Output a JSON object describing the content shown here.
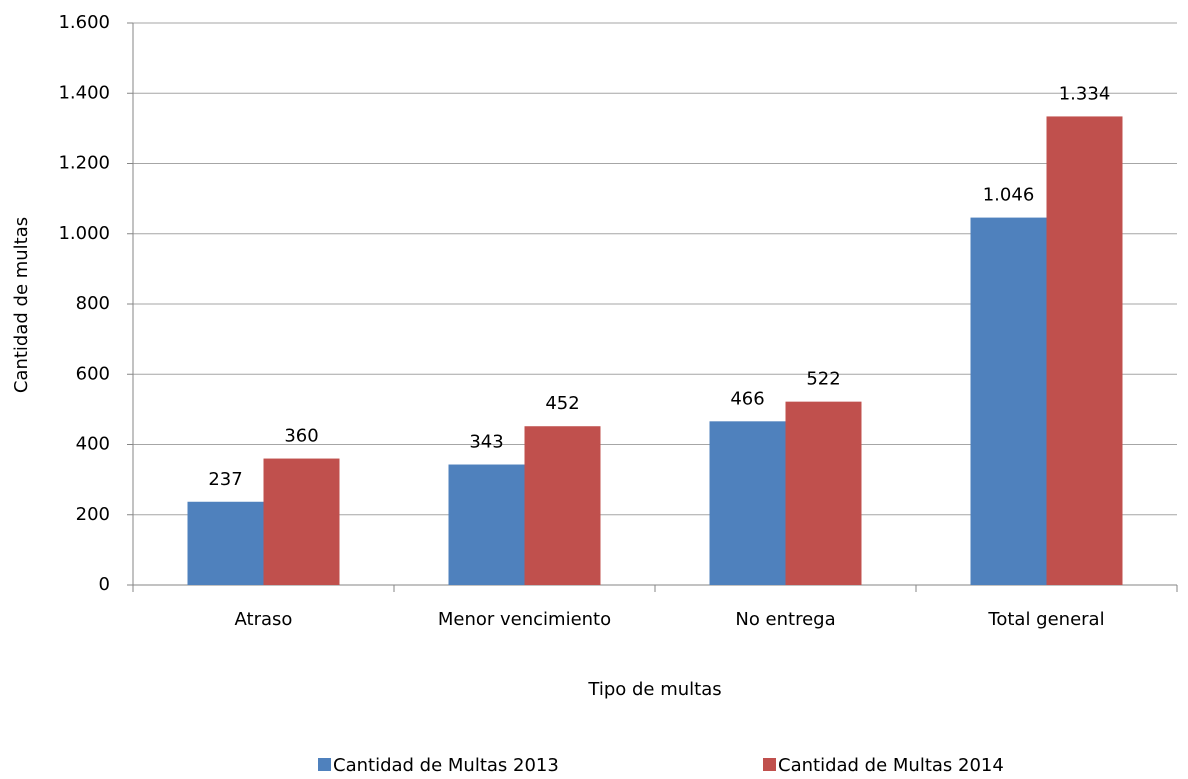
{
  "chart_data": {
    "type": "bar",
    "x_label": "Tipo de multas",
    "y_label": "Cantidad de multas",
    "categories": [
      "Atraso",
      "Menor vencimiento",
      "No entrega",
      "Total general"
    ],
    "series": [
      {
        "name": "Cantidad de Multas 2013",
        "color": "#4f81bd",
        "values": [
          237,
          343,
          466,
          1046
        ],
        "value_labels": [
          "237",
          "343",
          "466",
          "1.046"
        ]
      },
      {
        "name": "Cantidad de Multas 2014",
        "color": "#c0504d",
        "values": [
          360,
          452,
          522,
          1334
        ],
        "value_labels": [
          "360",
          "452",
          "522",
          "1.334"
        ]
      }
    ],
    "ylim": [
      0,
      1600
    ],
    "yticks": [
      0,
      200,
      400,
      600,
      800,
      {
        "value": 1000,
        "label": "1.000"
      },
      {
        "value": 1200,
        "label": "1.200"
      },
      {
        "value": 1400,
        "label": "1.400"
      },
      {
        "value": 1600,
        "label": "1.600"
      }
    ],
    "grid": true,
    "legend": "bottom"
  }
}
